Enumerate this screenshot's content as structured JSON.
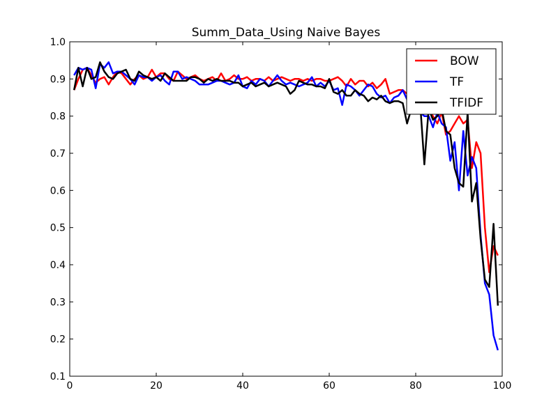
{
  "chart_data": {
    "type": "line",
    "title": "Summ_Data_Using Naive Bayes",
    "xlabel": "",
    "ylabel": "",
    "xlim": [
      0,
      100
    ],
    "ylim": [
      0.1,
      1.0
    ],
    "xticks": [
      0,
      20,
      40,
      60,
      80,
      100
    ],
    "yticks": [
      0.1,
      0.2,
      0.3,
      0.4,
      0.5,
      0.6,
      0.7,
      0.8,
      0.9,
      1.0
    ],
    "xtick_labels": [
      "0",
      "20",
      "40",
      "60",
      "80",
      "100"
    ],
    "ytick_labels": [
      "0.1",
      "0.2",
      "0.3",
      "0.4",
      "0.5",
      "0.6",
      "0.7",
      "0.8",
      "0.9",
      "1.0"
    ],
    "grid": false,
    "legend_position": "top-right",
    "series": [
      {
        "name": "BOW",
        "color": "#ff0000",
        "x": [
          1,
          2,
          3,
          4,
          5,
          6,
          7,
          8,
          9,
          10,
          11,
          12,
          13,
          14,
          15,
          16,
          17,
          18,
          19,
          20,
          21,
          22,
          23,
          24,
          25,
          26,
          27,
          28,
          29,
          30,
          31,
          32,
          33,
          34,
          35,
          36,
          37,
          38,
          39,
          40,
          41,
          42,
          43,
          44,
          45,
          46,
          47,
          48,
          49,
          50,
          51,
          52,
          53,
          54,
          55,
          56,
          57,
          58,
          59,
          60,
          61,
          62,
          63,
          64,
          65,
          66,
          67,
          68,
          69,
          70,
          71,
          72,
          73,
          74,
          75,
          76,
          77,
          78,
          79,
          80,
          81,
          82,
          83,
          84,
          85,
          86,
          87,
          88,
          89,
          90,
          91,
          92,
          93,
          94,
          95,
          96,
          97,
          98,
          99
        ],
        "y": [
          0.87,
          0.9,
          0.925,
          0.93,
          0.91,
          0.89,
          0.9,
          0.905,
          0.885,
          0.905,
          0.92,
          0.915,
          0.9,
          0.885,
          0.9,
          0.91,
          0.9,
          0.905,
          0.925,
          0.905,
          0.915,
          0.915,
          0.9,
          0.895,
          0.92,
          0.91,
          0.9,
          0.905,
          0.91,
          0.9,
          0.895,
          0.9,
          0.905,
          0.895,
          0.915,
          0.895,
          0.9,
          0.91,
          0.9,
          0.9,
          0.905,
          0.895,
          0.9,
          0.9,
          0.895,
          0.905,
          0.895,
          0.9,
          0.905,
          0.9,
          0.895,
          0.9,
          0.9,
          0.895,
          0.9,
          0.895,
          0.9,
          0.9,
          0.895,
          0.895,
          0.9,
          0.905,
          0.895,
          0.88,
          0.9,
          0.885,
          0.895,
          0.895,
          0.88,
          0.89,
          0.875,
          0.885,
          0.9,
          0.86,
          0.865,
          0.87,
          0.87,
          0.86,
          0.865,
          0.85,
          0.84,
          0.83,
          0.82,
          0.8,
          0.78,
          0.81,
          0.75,
          0.76,
          0.78,
          0.8,
          0.78,
          0.79,
          0.66,
          0.73,
          0.7,
          0.5,
          0.38,
          0.45,
          0.425
        ]
      },
      {
        "name": "TF",
        "color": "#0000ff",
        "x": [
          1,
          2,
          3,
          4,
          5,
          6,
          7,
          8,
          9,
          10,
          11,
          12,
          13,
          14,
          15,
          16,
          17,
          18,
          19,
          20,
          21,
          22,
          23,
          24,
          25,
          26,
          27,
          28,
          29,
          30,
          31,
          32,
          33,
          34,
          35,
          36,
          37,
          38,
          39,
          40,
          41,
          42,
          43,
          44,
          45,
          46,
          47,
          48,
          49,
          50,
          51,
          52,
          53,
          54,
          55,
          56,
          57,
          58,
          59,
          60,
          61,
          62,
          63,
          64,
          65,
          66,
          67,
          68,
          69,
          70,
          71,
          72,
          73,
          74,
          75,
          76,
          77,
          78,
          79,
          80,
          81,
          82,
          83,
          84,
          85,
          86,
          87,
          88,
          89,
          90,
          91,
          92,
          93,
          94,
          95,
          96,
          97,
          98,
          99
        ],
        "y": [
          0.91,
          0.93,
          0.925,
          0.93,
          0.925,
          0.875,
          0.94,
          0.93,
          0.945,
          0.915,
          0.92,
          0.92,
          0.91,
          0.9,
          0.885,
          0.91,
          0.905,
          0.905,
          0.895,
          0.905,
          0.91,
          0.895,
          0.885,
          0.92,
          0.92,
          0.9,
          0.905,
          0.9,
          0.895,
          0.885,
          0.885,
          0.885,
          0.89,
          0.895,
          0.895,
          0.89,
          0.885,
          0.89,
          0.91,
          0.88,
          0.875,
          0.895,
          0.885,
          0.9,
          0.895,
          0.88,
          0.895,
          0.91,
          0.895,
          0.885,
          0.89,
          0.885,
          0.88,
          0.885,
          0.89,
          0.905,
          0.88,
          0.89,
          0.88,
          0.895,
          0.87,
          0.875,
          0.83,
          0.885,
          0.88,
          0.87,
          0.855,
          0.87,
          0.885,
          0.88,
          0.86,
          0.85,
          0.855,
          0.835,
          0.85,
          0.855,
          0.87,
          0.845,
          0.85,
          0.84,
          0.81,
          0.8,
          0.8,
          0.77,
          0.81,
          0.78,
          0.77,
          0.68,
          0.73,
          0.6,
          0.76,
          0.64,
          0.69,
          0.66,
          0.48,
          0.35,
          0.32,
          0.21,
          0.17
        ]
      },
      {
        "name": "TFIDF",
        "color": "#000000",
        "x": [
          1,
          2,
          3,
          4,
          5,
          6,
          7,
          8,
          9,
          10,
          11,
          12,
          13,
          14,
          15,
          16,
          17,
          18,
          19,
          20,
          21,
          22,
          23,
          24,
          25,
          26,
          27,
          28,
          29,
          30,
          31,
          32,
          33,
          34,
          35,
          36,
          37,
          38,
          39,
          40,
          41,
          42,
          43,
          44,
          45,
          46,
          47,
          48,
          49,
          50,
          51,
          52,
          53,
          54,
          55,
          56,
          57,
          58,
          59,
          60,
          61,
          62,
          63,
          64,
          65,
          66,
          67,
          68,
          69,
          70,
          71,
          72,
          73,
          74,
          75,
          76,
          77,
          78,
          79,
          80,
          81,
          82,
          83,
          84,
          85,
          86,
          87,
          88,
          89,
          90,
          91,
          92,
          93,
          94,
          95,
          96,
          97,
          98,
          99
        ],
        "y": [
          0.87,
          0.93,
          0.88,
          0.93,
          0.9,
          0.905,
          0.945,
          0.92,
          0.905,
          0.9,
          0.915,
          0.92,
          0.925,
          0.9,
          0.895,
          0.92,
          0.91,
          0.905,
          0.9,
          0.905,
          0.895,
          0.915,
          0.905,
          0.895,
          0.895,
          0.895,
          0.895,
          0.905,
          0.905,
          0.9,
          0.89,
          0.9,
          0.895,
          0.9,
          0.895,
          0.895,
          0.895,
          0.89,
          0.89,
          0.88,
          0.885,
          0.89,
          0.88,
          0.885,
          0.89,
          0.88,
          0.885,
          0.89,
          0.885,
          0.88,
          0.86,
          0.87,
          0.895,
          0.89,
          0.885,
          0.885,
          0.88,
          0.88,
          0.875,
          0.9,
          0.865,
          0.86,
          0.87,
          0.855,
          0.855,
          0.87,
          0.86,
          0.855,
          0.84,
          0.85,
          0.845,
          0.855,
          0.84,
          0.835,
          0.84,
          0.84,
          0.835,
          0.78,
          0.82,
          0.83,
          0.84,
          0.67,
          0.82,
          0.79,
          0.8,
          0.82,
          0.76,
          0.75,
          0.66,
          0.62,
          0.61,
          0.81,
          0.57,
          0.62,
          0.47,
          0.36,
          0.34,
          0.51,
          0.29
        ]
      }
    ]
  }
}
